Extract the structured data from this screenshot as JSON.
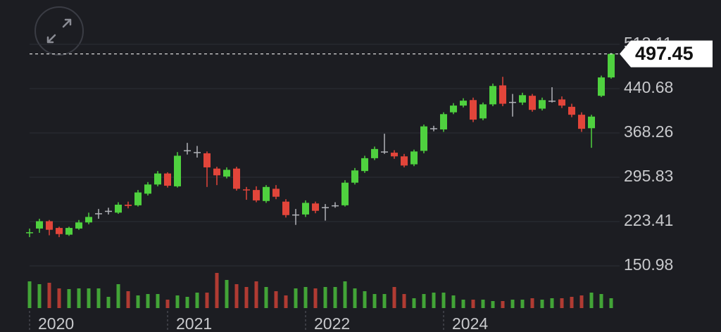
{
  "chart_data": {
    "type": "candlestick",
    "categories": [
      "2020",
      null,
      null,
      null,
      null,
      null,
      null,
      null,
      null,
      null,
      null,
      null,
      null,
      null,
      "2021",
      null,
      null,
      null,
      null,
      null,
      null,
      null,
      null,
      null,
      null,
      null,
      null,
      null,
      "2022",
      null,
      null,
      null,
      null,
      null,
      null,
      null,
      null,
      null,
      null,
      null,
      null,
      null,
      "2024",
      null,
      null,
      null,
      null,
      null,
      null,
      null,
      null,
      null,
      null,
      null,
      null,
      null,
      null,
      null,
      null,
      null
    ],
    "open": [
      205,
      212,
      224,
      213,
      202,
      212,
      222,
      237,
      241,
      238,
      251,
      250,
      269,
      284,
      302,
      281,
      340,
      337,
      335,
      310,
      297,
      310,
      276,
      275,
      257,
      277,
      256,
      235,
      235,
      253,
      247,
      250,
      250,
      287,
      306,
      327,
      338,
      336,
      330,
      317,
      339,
      376,
      374,
      402,
      413,
      422,
      392,
      415,
      446,
      419,
      418,
      429,
      408,
      421,
      423,
      411,
      398,
      376,
      429,
      459
    ],
    "high": [
      212,
      228,
      226,
      215,
      215,
      226,
      238,
      244,
      246,
      255,
      256,
      275,
      288,
      306,
      304,
      337,
      352,
      347,
      338,
      313,
      312,
      313,
      280,
      281,
      283,
      283,
      260,
      244,
      258,
      256,
      252,
      255,
      291,
      311,
      331,
      346,
      367,
      340,
      334,
      341,
      382,
      380,
      402,
      417,
      425,
      426,
      418,
      449,
      460,
      432,
      434,
      432,
      426,
      443,
      428,
      416,
      402,
      398,
      462,
      499
    ],
    "low": [
      198,
      205,
      201,
      198,
      200,
      210,
      219,
      228,
      235,
      236,
      245,
      248,
      266,
      281,
      279,
      279,
      333,
      328,
      280,
      283,
      294,
      274,
      259,
      255,
      254,
      260,
      230,
      218,
      231,
      237,
      225,
      246,
      248,
      284,
      303,
      324,
      334,
      326,
      312,
      314,
      335,
      371,
      370,
      399,
      410,
      386,
      389,
      412,
      412,
      395,
      414,
      403,
      405,
      418,
      409,
      394,
      370,
      344,
      427,
      457
    ],
    "close": [
      206,
      224,
      210,
      203,
      213,
      222,
      231,
      237,
      241,
      251,
      249,
      271,
      284,
      302,
      282,
      331,
      340,
      337,
      312,
      299,
      308,
      277,
      275,
      258,
      280,
      264,
      234,
      235,
      254,
      241,
      247,
      250,
      287,
      307,
      327,
      342,
      338,
      330,
      315,
      338,
      379,
      376,
      399,
      413,
      421,
      390,
      415,
      445,
      416,
      419,
      430,
      406,
      422,
      421,
      413,
      398,
      375,
      395,
      459,
      497.45
    ],
    "volume": [
      38,
      34,
      36,
      28,
      27,
      28,
      28,
      28,
      16,
      34,
      24,
      18,
      20,
      20,
      12,
      18,
      16,
      22,
      22,
      50,
      40,
      34,
      30,
      38,
      30,
      24,
      18,
      28,
      30,
      28,
      30,
      30,
      38,
      28,
      24,
      20,
      20,
      30,
      20,
      14,
      20,
      22,
      22,
      18,
      12,
      12,
      12,
      10,
      10,
      12,
      12,
      14,
      12,
      14,
      14,
      16,
      18,
      22,
      20,
      14
    ],
    "volume_lim": [
      0,
      60
    ],
    "up_color": "#4fd13f",
    "down_color": "#e2453a",
    "ylim": [
      125.69,
      539.58
    ],
    "yticks": [
      150.98,
      223.41,
      295.83,
      368.26,
      440.68,
      513.11
    ],
    "grid": true,
    "last_price": 497.45
  }
}
